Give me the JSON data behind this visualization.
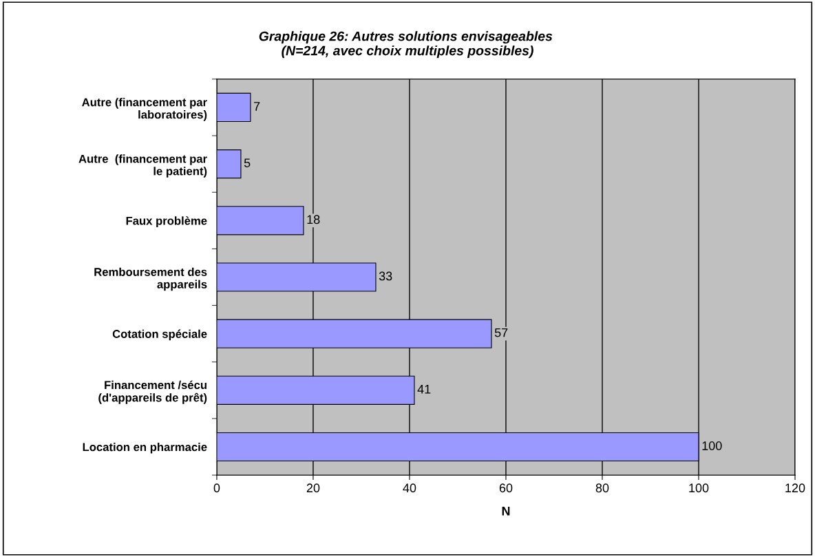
{
  "chart_data": {
    "type": "bar",
    "orientation": "horizontal",
    "title": "Graphique 26: Autres solutions envisageables \n(N=214, avec choix multiples possibles)",
    "xlabel": "N",
    "categories": [
      "Autre (financement par\nlaboratoires)",
      "Autre  (financement par\nle patient)",
      "Faux problème",
      "Remboursement des\nappareils",
      "Cotation spéciale",
      "Financement /sécu\n(d'appareils de prêt)",
      "Location en pharmacie"
    ],
    "values": [
      7,
      5,
      18,
      33,
      57,
      41,
      100
    ],
    "color": "#9999ff",
    "xlim": [
      0,
      120
    ],
    "xticks": [
      0,
      20,
      40,
      60,
      80,
      100,
      120
    ],
    "grid": "x",
    "data_labels": true,
    "legend": false
  }
}
